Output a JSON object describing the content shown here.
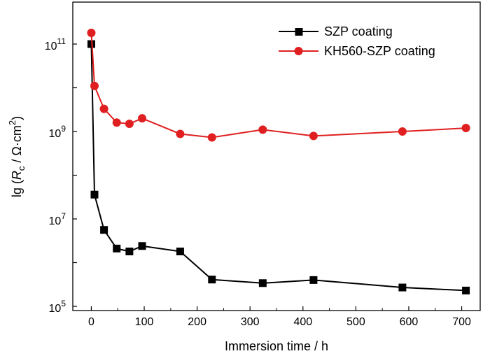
{
  "chart_data": {
    "type": "line",
    "title": "",
    "xlabel": "Immersion time / h",
    "ylabel": {
      "prefix": "lg (",
      "symbol": "R",
      "subscript": "c",
      "unit": " / Ω·cm",
      "superscript": "2",
      "suffix": ")"
    },
    "x_scale": "linear",
    "y_scale": "log",
    "xlim": [
      -35,
      735
    ],
    "ylim_exponent": [
      5,
      12
    ],
    "x_ticks": [
      0,
      100,
      200,
      300,
      400,
      500,
      600,
      700
    ],
    "x_tick_labels": [
      "0",
      "100",
      "200",
      "300",
      "400",
      "500",
      "600",
      "700"
    ],
    "y_tick_labels": [
      {
        "exp": 5,
        "base": "10",
        "power": "5"
      },
      {
        "exp": 7,
        "base": "10",
        "power": "7"
      },
      {
        "exp": 9,
        "base": "10",
        "power": "9"
      },
      {
        "exp": 11,
        "base": "10",
        "power": "11"
      }
    ],
    "legend_position": "top-right",
    "series": [
      {
        "name": "SZP coating",
        "color": "#000000",
        "marker": "square",
        "x": [
          0,
          6,
          24,
          48,
          72,
          96,
          168,
          228,
          324,
          420,
          588,
          708
        ],
        "y": [
          100000000000.0,
          36000000.0,
          5600000.0,
          2100000.0,
          1800000.0,
          2400000.0,
          1800000.0,
          410000.0,
          340000.0,
          400000.0,
          270000.0,
          230000.0
        ]
      },
      {
        "name": "KH560-SZP coating",
        "color": "#e02020",
        "marker": "circle",
        "x": [
          0,
          6,
          24,
          48,
          72,
          96,
          168,
          228,
          324,
          420,
          588,
          708
        ],
        "y": [
          180000000000.0,
          11000000000.0,
          3300000000.0,
          1600000000.0,
          1500000000.0,
          2000000000.0,
          880000000.0,
          730000000.0,
          1100000000.0,
          790000000.0,
          1000000000.0,
          1200000000.0
        ]
      }
    ]
  }
}
